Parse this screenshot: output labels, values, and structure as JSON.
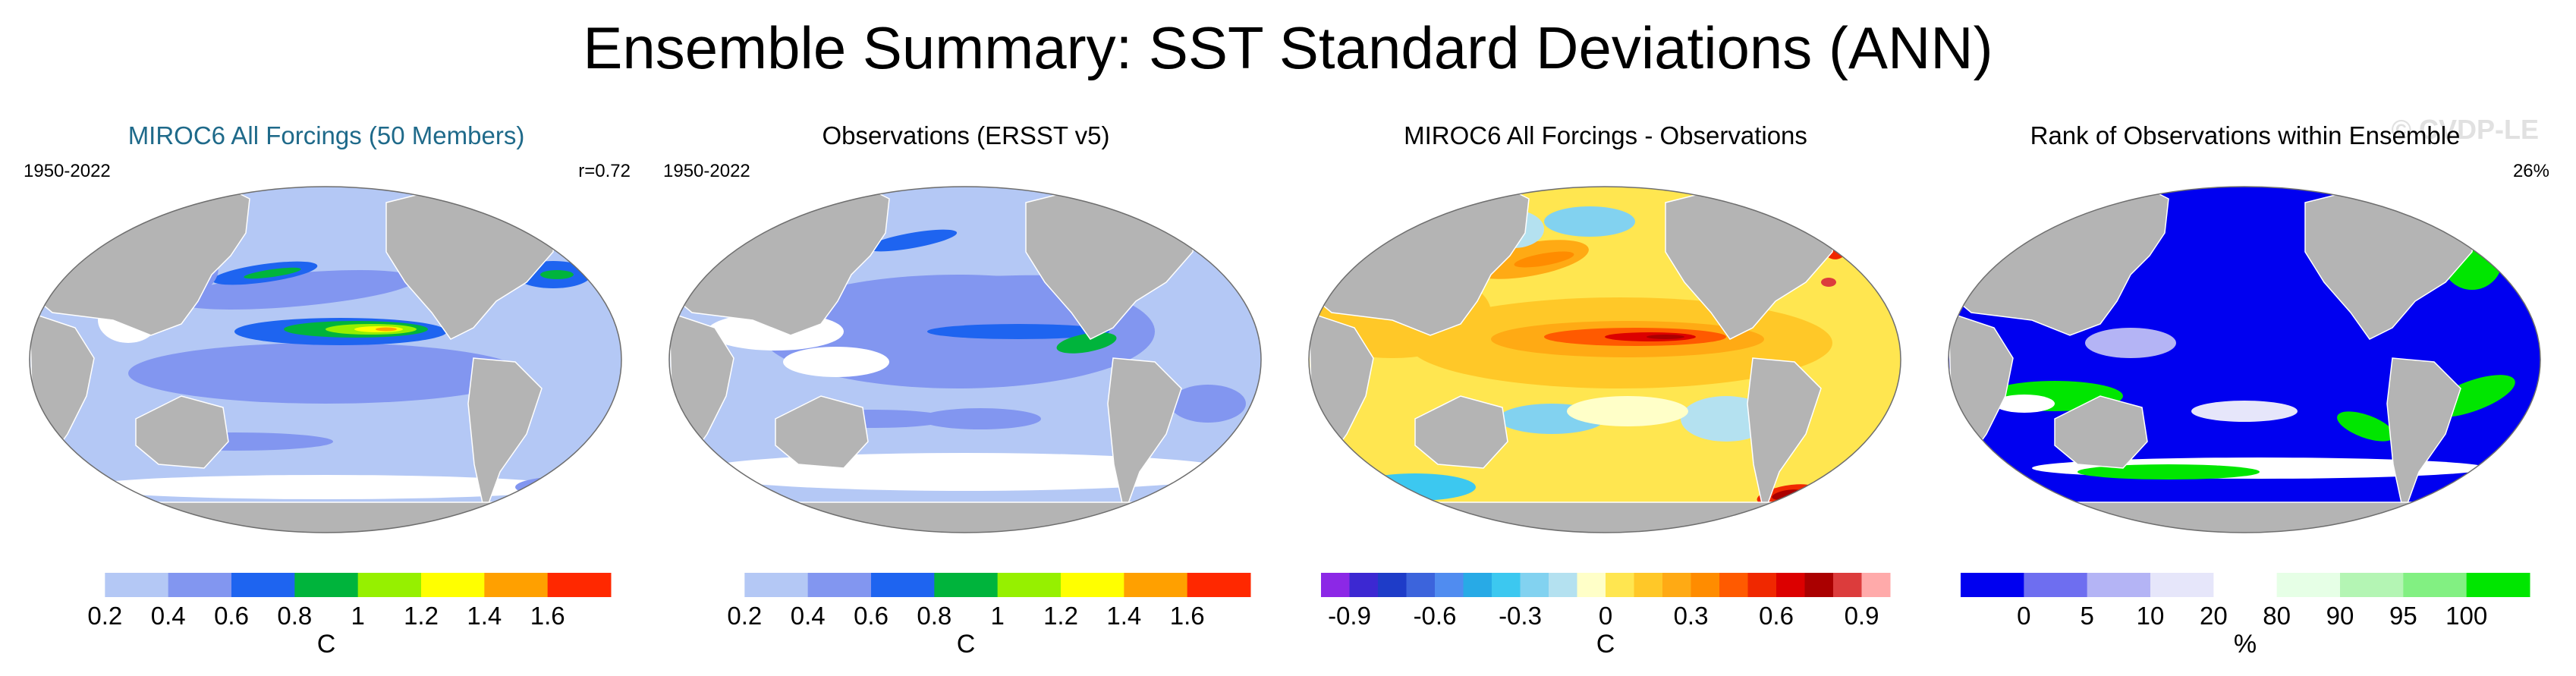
{
  "title": "Ensemble Summary: SST Standard Deviations (ANN)",
  "watermark": "© CVDP-LE",
  "panels": [
    {
      "title": "MIROC6 All Forcings (50 Members)",
      "period": "1950-2022",
      "stat": "r=0.72",
      "unit": "C"
    },
    {
      "title": "Observations (ERSST v5)",
      "period": "1950-2022",
      "stat": "",
      "unit": "C"
    },
    {
      "title": "MIROC6 All Forcings - Observations",
      "period": "",
      "stat": "",
      "unit": "C"
    },
    {
      "title": "Rank of Observations within Ensemble",
      "period": "",
      "stat": "26%",
      "unit": "%"
    }
  ],
  "colorbars": {
    "sd": {
      "colors": [
        "#ffffff",
        "#b4c8f5",
        "#8296f0",
        "#1e64f0",
        "#00b43c",
        "#96f000",
        "#ffff00",
        "#ffa000",
        "#ff2800"
      ],
      "ticks": [
        "0.2",
        "0.4",
        "0.6",
        "0.8",
        "1",
        "1.2",
        "1.4",
        "1.6"
      ]
    },
    "diff": {
      "colors": [
        "#8c28e6",
        "#3c28d2",
        "#1e3cc8",
        "#3c64dc",
        "#508cf0",
        "#28aae6",
        "#3cc8f0",
        "#82d2f0",
        "#b4e1f0",
        "#ffffc8",
        "#ffe650",
        "#ffc828",
        "#ffaa14",
        "#ff8c00",
        "#ff5a00",
        "#f02800",
        "#dc0000",
        "#aa0000",
        "#dc3c3c",
        "#ffaaaa"
      ],
      "ticks": [
        "-0.9",
        "-0.6",
        "-0.3",
        "0",
        "0.3",
        "0.6",
        "0.9"
      ]
    },
    "rank": {
      "colors": [
        "#0000f0",
        "#6e6ef0",
        "#b4b4f5",
        "#e6e6fa",
        "#ffffff",
        "#e6ffe6",
        "#b4f5b4",
        "#82f082",
        "#00e600"
      ],
      "ticks": [
        "0",
        "5",
        "10",
        "20",
        "80",
        "90",
        "95",
        "100"
      ]
    }
  },
  "chart_data": [
    {
      "type": "heatmap",
      "title": "MIROC6 All Forcings (50 Members)",
      "variable": "SST standard deviation",
      "units": "C",
      "period": "1950-2022",
      "pattern_correlation": 0.72,
      "levels": [
        0.2,
        0.4,
        0.6,
        0.8,
        1,
        1.2,
        1.4,
        1.6
      ]
    },
    {
      "type": "heatmap",
      "title": "Observations (ERSST v5)",
      "variable": "SST standard deviation",
      "units": "C",
      "period": "1950-2022",
      "levels": [
        0.2,
        0.4,
        0.6,
        0.8,
        1,
        1.2,
        1.4,
        1.6
      ]
    },
    {
      "type": "heatmap",
      "title": "MIROC6 All Forcings - Observations",
      "variable": "SST standard deviation difference",
      "units": "C",
      "levels": [
        -0.9,
        -0.8,
        -0.7,
        -0.6,
        -0.5,
        -0.4,
        -0.3,
        -0.2,
        -0.1,
        0,
        0.1,
        0.2,
        0.3,
        0.4,
        0.5,
        0.6,
        0.7,
        0.8,
        0.9
      ]
    },
    {
      "type": "heatmap",
      "title": "Rank of Observations within Ensemble",
      "units": "%",
      "summary": "26%",
      "levels": [
        0,
        5,
        10,
        20,
        80,
        90,
        95,
        100
      ]
    }
  ]
}
